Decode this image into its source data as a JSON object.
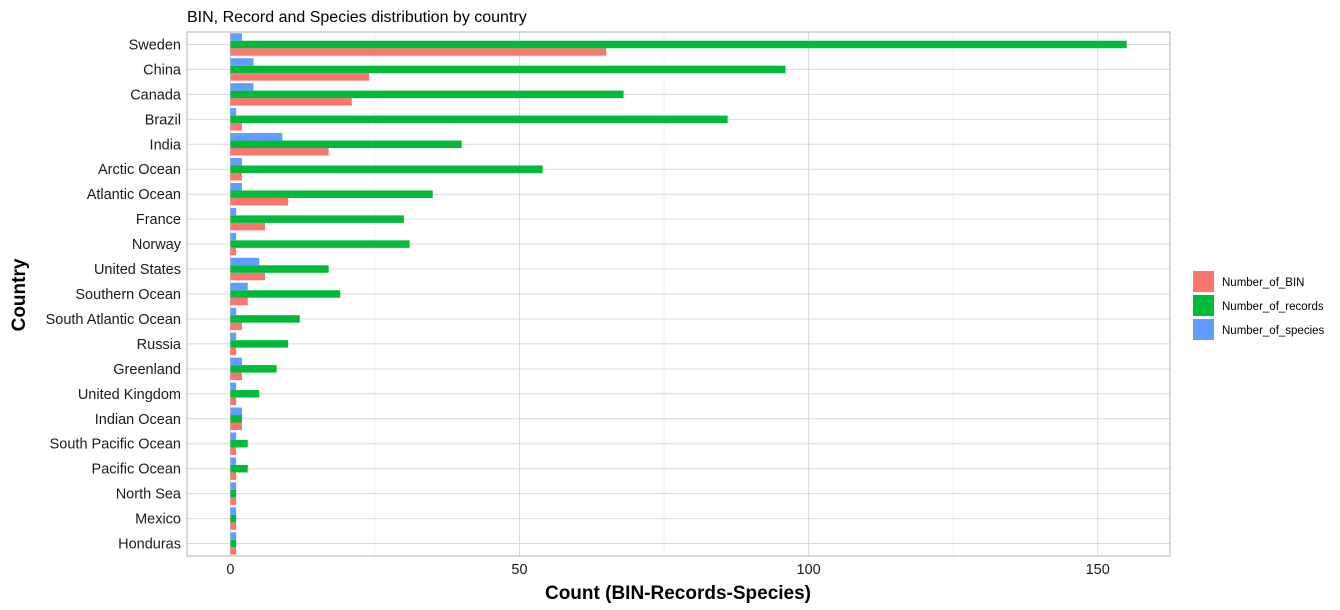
{
  "chart_data": {
    "type": "bar",
    "orientation": "horizontal",
    "title": "BIN,  Record and Species distribution by country",
    "xlabel": "Count (BIN-Records-Species)",
    "ylabel": "Country",
    "xlim": [
      -7.5,
      162.5
    ],
    "xticks": [
      0,
      50,
      100,
      150
    ],
    "grid": true,
    "legend_position": "right",
    "categories": [
      "Sweden",
      "China",
      "Canada",
      "Brazil",
      "India",
      "Arctic Ocean",
      "Atlantic Ocean",
      "France",
      "Norway",
      "United States",
      "Southern Ocean",
      "South Atlantic Ocean",
      "Russia",
      "Greenland",
      "United Kingdom",
      "Indian Ocean",
      "South Pacific Ocean",
      "Pacific Ocean",
      "North Sea",
      "Mexico",
      "Honduras"
    ],
    "series": [
      {
        "name": "Number_of_BIN",
        "color": "#F8766D",
        "values": [
          65,
          24,
          21,
          2,
          17,
          2,
          10,
          6,
          1,
          6,
          3,
          2,
          1,
          2,
          1,
          2,
          1,
          1,
          1,
          1,
          1
        ]
      },
      {
        "name": "Number_of_records",
        "color": "#00BA38",
        "values": [
          155,
          96,
          68,
          86,
          40,
          54,
          35,
          30,
          31,
          17,
          19,
          12,
          10,
          8,
          5,
          2,
          3,
          3,
          1,
          1,
          1
        ]
      },
      {
        "name": "Number_of_species",
        "color": "#619CFF",
        "values": [
          2,
          4,
          4,
          1,
          9,
          2,
          2,
          1,
          1,
          5,
          3,
          1,
          1,
          2,
          1,
          2,
          1,
          1,
          1,
          1,
          1
        ]
      }
    ]
  }
}
